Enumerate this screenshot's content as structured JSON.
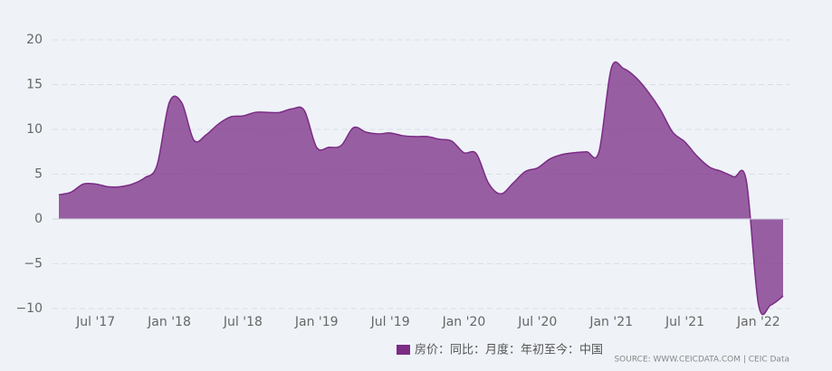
{
  "chart_data": {
    "type": "area",
    "x": [
      "2017-04",
      "2017-05",
      "2017-06",
      "2017-07",
      "2017-08",
      "2017-09",
      "2017-10",
      "2017-11",
      "2017-12",
      "2018-01",
      "2018-02",
      "2018-03",
      "2018-04",
      "2018-05",
      "2018-06",
      "2018-07",
      "2018-08",
      "2018-09",
      "2018-10",
      "2018-11",
      "2018-12",
      "2019-01",
      "2019-02",
      "2019-03",
      "2019-04",
      "2019-05",
      "2019-06",
      "2019-07",
      "2019-08",
      "2019-09",
      "2019-10",
      "2019-11",
      "2019-12",
      "2020-01",
      "2020-02",
      "2020-03",
      "2020-04",
      "2020-05",
      "2020-06",
      "2020-07",
      "2020-08",
      "2020-09",
      "2020-10",
      "2020-11",
      "2020-12",
      "2021-01",
      "2021-02",
      "2021-03",
      "2021-04",
      "2021-05",
      "2021-06",
      "2021-07",
      "2021-08",
      "2021-09",
      "2021-10",
      "2021-11",
      "2021-12",
      "2022-01",
      "2022-02",
      "2022-03"
    ],
    "series": [
      {
        "name": "房价：同比：月度：年初至今：中国",
        "color": "#7b2c85",
        "values": [
          2.7,
          3.0,
          3.9,
          3.9,
          3.6,
          3.6,
          3.9,
          4.6,
          6.0,
          13.0,
          13.0,
          8.8,
          9.4,
          10.6,
          11.4,
          11.5,
          11.9,
          11.9,
          11.9,
          12.3,
          12.1,
          8.0,
          8.0,
          8.2,
          10.2,
          9.7,
          9.5,
          9.6,
          9.3,
          9.2,
          9.2,
          8.9,
          8.7,
          7.4,
          7.3,
          4.0,
          2.8,
          4.0,
          5.3,
          5.7,
          6.7,
          7.2,
          7.4,
          7.5,
          7.5,
          16.8,
          16.8,
          15.8,
          14.2,
          12.2,
          9.7,
          8.6,
          7.0,
          5.8,
          5.3,
          4.7,
          4.3,
          -9.6,
          -9.6,
          -8.6
        ]
      }
    ],
    "ylim": [
      -10,
      20
    ],
    "yticks": [
      20,
      15,
      10,
      5,
      0,
      {
        "value": -5,
        "label": "−5"
      },
      {
        "value": -10,
        "label": "−10"
      }
    ],
    "xticks": [
      {
        "value": "2017-07",
        "label": "Jul '17"
      },
      {
        "value": "2018-01",
        "label": "Jan '18"
      },
      {
        "value": "2018-07",
        "label": "Jul '18"
      },
      {
        "value": "2019-01",
        "label": "Jan '19"
      },
      {
        "value": "2019-07",
        "label": "Jul '19"
      },
      {
        "value": "2020-01",
        "label": "Jan '20"
      },
      {
        "value": "2020-07",
        "label": "Jul '20"
      },
      {
        "value": "2021-01",
        "label": "Jan '21"
      },
      {
        "value": "2021-07",
        "label": "Jul '21"
      },
      {
        "value": "2022-01",
        "label": "Jan '22"
      }
    ],
    "grid": true,
    "source": "SOURCE: WWW.CEICDATA.COM | CEIC Data"
  }
}
